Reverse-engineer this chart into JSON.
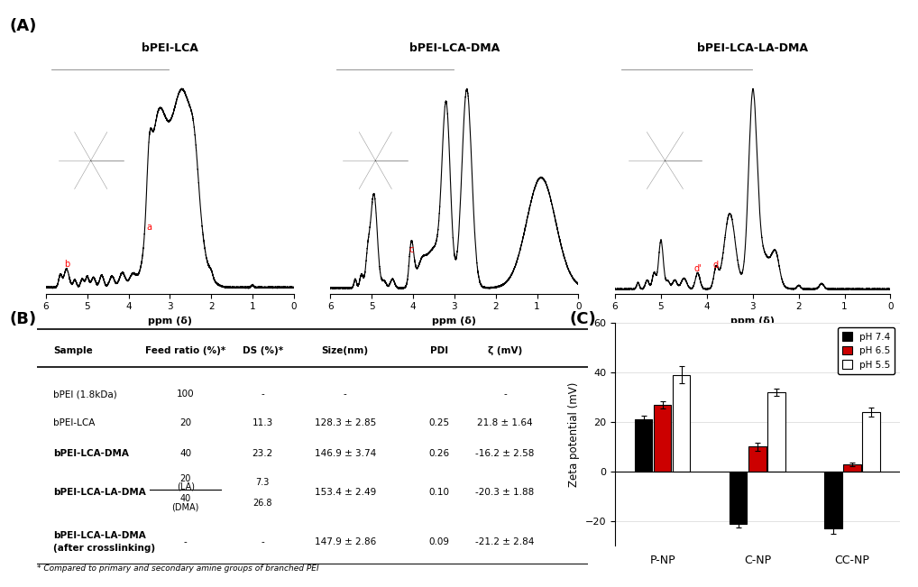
{
  "panel_A_title": "(A)",
  "panel_B_title": "(B)",
  "panel_C_title": "(C)",
  "nmr_titles": [
    "bPEI-LCA",
    "bPEI-LCA-DMA",
    "bPEI-LCA-LA-DMA"
  ],
  "nmr_xlabel": "ppm (δ)",
  "bar_categories": [
    "P-NP",
    "C-NP",
    "CC-NP"
  ],
  "bar_data": {
    "pH_7.4": [
      21.0,
      -21.0,
      -23.0
    ],
    "pH_6.5": [
      27.0,
      10.0,
      3.0
    ],
    "pH_5.5": [
      39.0,
      32.0,
      24.0
    ]
  },
  "bar_errors": {
    "pH_7.4": [
      1.5,
      1.5,
      2.0
    ],
    "pH_6.5": [
      1.5,
      1.5,
      0.8
    ],
    "pH_5.5": [
      3.5,
      1.5,
      2.0
    ]
  },
  "bar_colors": {
    "pH_7.4": "#000000",
    "pH_6.5": "#cc0000",
    "pH_5.5": "#ffffff"
  },
  "y_axis_label": "Zeta potential (mV)",
  "y_lim": [
    -30,
    60
  ],
  "y_ticks": [
    -20,
    0,
    20,
    40,
    60
  ],
  "footnote": "* Compared to primary and secondary amine groups of branched PEI",
  "background_color": "#ffffff"
}
